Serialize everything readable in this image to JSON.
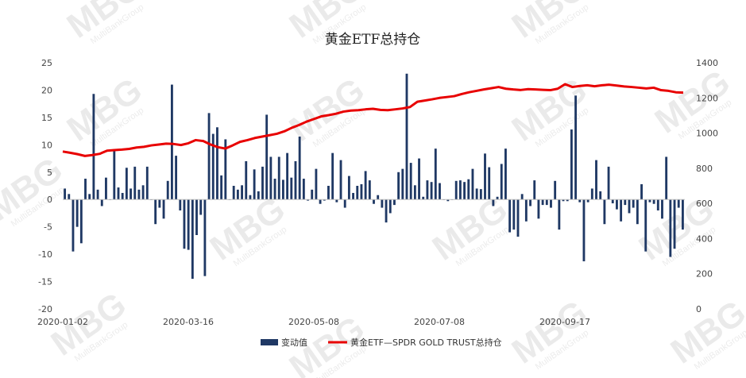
{
  "chart_data": {
    "type": "bar+line",
    "title": "黄金ETF总持仓",
    "x_labels": [
      "2020-01-02",
      "2020-03-16",
      "2020-05-08",
      "2020-07-08",
      "2020-09-17"
    ],
    "left_axis": {
      "ticks": [
        25,
        20,
        15,
        10,
        5,
        0,
        -5,
        -10,
        -15,
        -20
      ],
      "ylim": [
        -20,
        25
      ]
    },
    "right_axis": {
      "ticks": [
        1400,
        1200,
        1000,
        800,
        600,
        400,
        200,
        0
      ],
      "ylim": [
        0,
        1400
      ]
    },
    "series": [
      {
        "name": "变动值",
        "type": "bar",
        "color": "#1f3864",
        "values": [
          2,
          1,
          -9.5,
          -5,
          -8,
          3.8,
          1,
          19.3,
          1.8,
          -1.2,
          4,
          0,
          9.2,
          2.2,
          1.2,
          5.8,
          2,
          6,
          1.8,
          2.6,
          6,
          0,
          -4.5,
          -1.5,
          -3.5,
          3.4,
          21,
          8,
          -2,
          -9,
          -9.2,
          -14.5,
          -6.5,
          -2.8,
          -14,
          15.8,
          12,
          13.2,
          4.4,
          11,
          0,
          2.5,
          1.8,
          2.6,
          7,
          0.8,
          5.5,
          1.5,
          6,
          15.5,
          7.8,
          3.8,
          7.8,
          3.6,
          8.5,
          4,
          7,
          11.5,
          3.8,
          -0.2,
          1.8,
          5.6,
          -0.8,
          -0.2,
          2.5,
          8.5,
          -0.5,
          7.2,
          -1.5,
          4.3,
          1.2,
          2.5,
          2.8,
          5.2,
          3.5,
          -0.8,
          0.8,
          -1.5,
          -4.2,
          -2.5,
          -1,
          5,
          5.6,
          23,
          6.7,
          2.6,
          7.5,
          0.5,
          3.5,
          3.2,
          9.3,
          3,
          0,
          -0.3,
          0,
          3.4,
          3.5,
          3.2,
          3.7,
          5.6,
          2,
          1.9,
          8.4,
          5.9,
          -1.2,
          0.5,
          6.5,
          9.3,
          -6,
          -5.5,
          -6.8,
          1,
          -4,
          -1.2,
          3.5,
          -3.5,
          -1,
          -1,
          -1.5,
          3.4,
          -5.5,
          -0.3,
          -0.3,
          12.8,
          19,
          -0.5,
          -11.3,
          -0.5,
          2,
          7.2,
          1.5,
          -4.5,
          6,
          -0.7,
          -1.8,
          -4,
          -1,
          -2.5,
          -1.5,
          -4.5,
          2.8,
          -9.5,
          -0.5,
          -0.8,
          -2,
          -3.5,
          7.8,
          -10.5,
          -9,
          -1.5,
          -5.5
        ]
      },
      {
        "name": "黄金ETF—SPDR GOLD TRUST总持仓",
        "type": "line",
        "color": "#e80000",
        "values": [
          895,
          888,
          880,
          870,
          875,
          882,
          900,
          903,
          906,
          910,
          918,
          922,
          930,
          935,
          940,
          938,
          932,
          942,
          960,
          955,
          935,
          920,
          912,
          930,
          950,
          960,
          972,
          980,
          988,
          996,
          1010,
          1030,
          1046,
          1065,
          1080,
          1095,
          1102,
          1110,
          1122,
          1128,
          1130,
          1135,
          1138,
          1132,
          1130,
          1135,
          1140,
          1148,
          1178,
          1185,
          1192,
          1200,
          1205,
          1210,
          1222,
          1232,
          1240,
          1248,
          1255,
          1262,
          1252,
          1248,
          1245,
          1250,
          1248,
          1246,
          1244,
          1252,
          1278,
          1262,
          1268,
          1272,
          1266,
          1272,
          1275,
          1270,
          1265,
          1262,
          1258,
          1254,
          1258,
          1244,
          1240,
          1232,
          1230
        ]
      }
    ],
    "legend_position": "bottom",
    "grid": false
  },
  "watermark": {
    "text": "MBG",
    "subtext": "MultiBankGroup"
  }
}
